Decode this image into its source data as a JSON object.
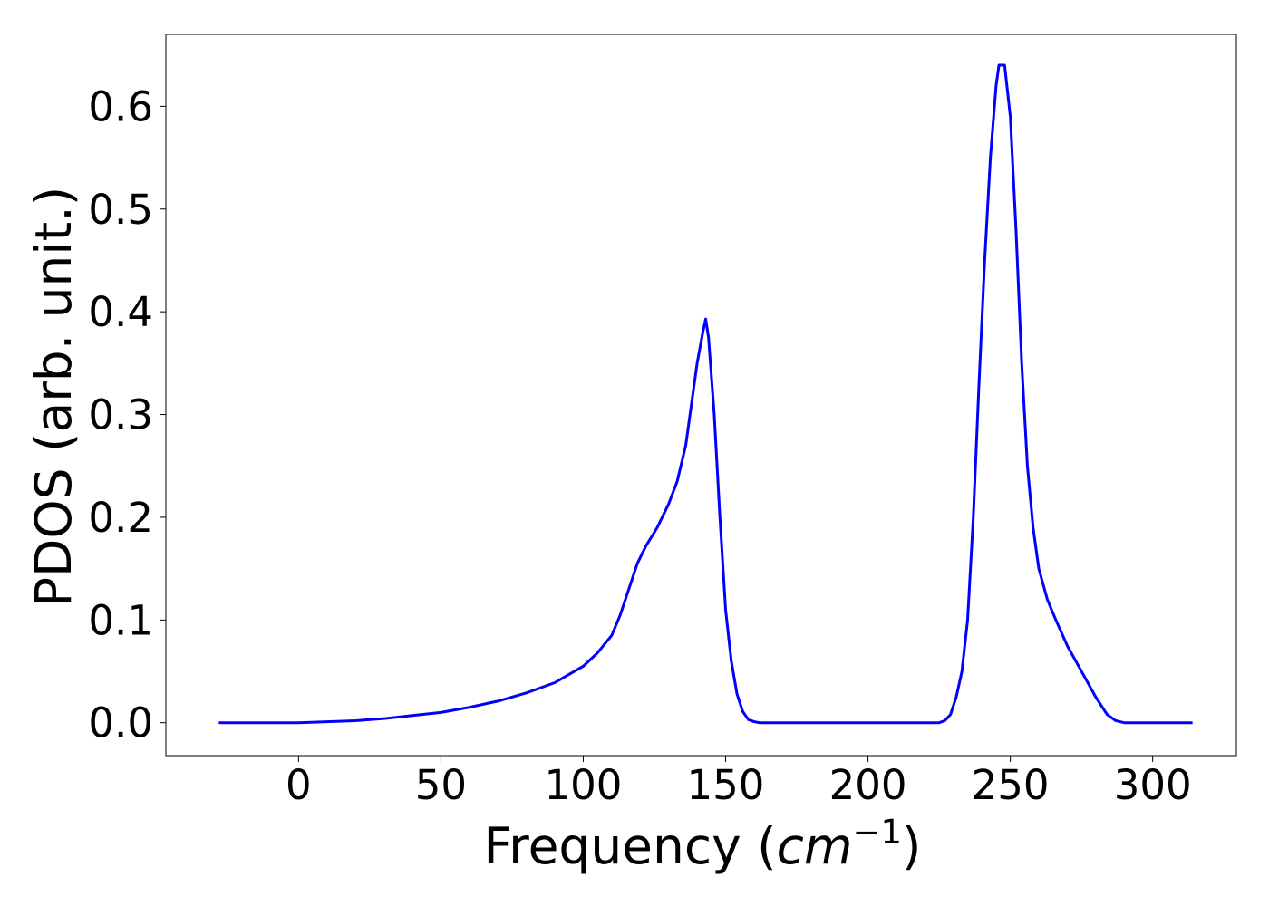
{
  "chart_data": {
    "type": "line",
    "title": "",
    "xlabel": "Frequency",
    "xlabel_unit_base": "cm",
    "xlabel_unit_exp": "−1",
    "ylabel": "PDOS (arb. unit.)",
    "xlim": [
      -46.6,
      329.4
    ],
    "ylim": [
      -0.032,
      0.67
    ],
    "xticks": [
      0,
      50,
      100,
      150,
      200,
      250,
      300
    ],
    "yticks": [
      0.0,
      0.1,
      0.2,
      0.3,
      0.4,
      0.5,
      0.6
    ],
    "ytick_labels": [
      "0.0",
      "0.1",
      "0.2",
      "0.3",
      "0.4",
      "0.5",
      "0.6"
    ],
    "grid": false,
    "legend": false,
    "series": [
      {
        "color": "#0000ff",
        "x": [
          -28,
          0,
          10,
          20,
          30,
          40,
          50,
          60,
          70,
          80,
          90,
          100,
          105,
          110,
          113,
          116,
          119,
          122,
          126,
          130,
          133,
          136,
          138,
          140,
          142,
          143,
          144,
          146,
          148,
          150,
          152,
          154,
          156,
          158,
          160,
          162,
          170,
          200,
          225,
          227,
          229,
          231,
          233,
          235,
          237,
          239,
          241,
          243,
          245,
          246,
          248,
          250,
          252,
          254,
          256,
          258,
          260,
          263,
          266,
          270,
          275,
          280,
          284,
          287,
          290,
          295,
          314
        ],
        "y": [
          0.0,
          0.0,
          0.001,
          0.002,
          0.004,
          0.007,
          0.01,
          0.015,
          0.021,
          0.029,
          0.039,
          0.055,
          0.068,
          0.085,
          0.105,
          0.13,
          0.155,
          0.172,
          0.19,
          0.213,
          0.235,
          0.27,
          0.31,
          0.35,
          0.38,
          0.393,
          0.375,
          0.3,
          0.2,
          0.11,
          0.06,
          0.028,
          0.011,
          0.003,
          0.001,
          0.0,
          0.0,
          0.0,
          0.0,
          0.002,
          0.008,
          0.025,
          0.05,
          0.1,
          0.2,
          0.33,
          0.45,
          0.55,
          0.62,
          0.64,
          0.64,
          0.59,
          0.48,
          0.35,
          0.25,
          0.19,
          0.15,
          0.12,
          0.1,
          0.075,
          0.05,
          0.025,
          0.008,
          0.002,
          0.0,
          0.0,
          0.0
        ]
      }
    ]
  }
}
